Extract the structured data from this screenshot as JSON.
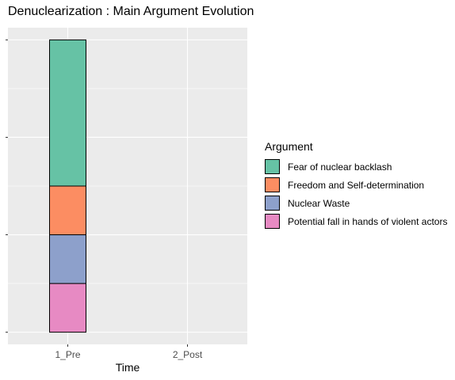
{
  "chart_data": {
    "type": "bar",
    "stacked": true,
    "title": "Denuclearization : Main Argument Evolution",
    "xlabel": "Time",
    "ylabel": "",
    "categories": [
      "1_Pre",
      "2_Post"
    ],
    "ylim": [
      -0.25,
      6.25
    ],
    "y_tick_labels_shown": false,
    "grid": true,
    "legend_title": "Argument",
    "legend_position": "right",
    "series": [
      {
        "name": "Fear of nuclear backlash",
        "color": "#66C2A5",
        "values": [
          3,
          0
        ]
      },
      {
        "name": "Freedom and Self-determination",
        "color": "#FC8D62",
        "values": [
          1,
          0
        ]
      },
      {
        "name": "Nuclear Waste",
        "color": "#8DA0CB",
        "values": [
          1,
          0
        ]
      },
      {
        "name": "Potential fall in hands of violent actors",
        "color": "#E78AC3",
        "values": [
          1,
          0
        ]
      }
    ]
  }
}
